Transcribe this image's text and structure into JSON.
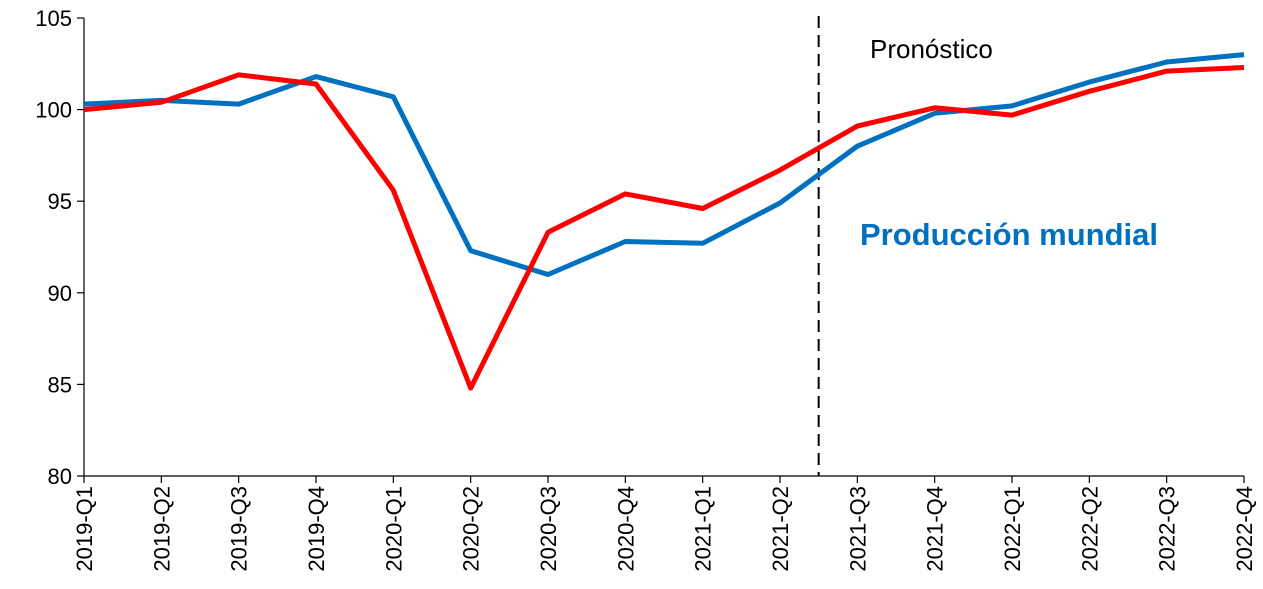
{
  "chart_data": {
    "type": "line",
    "categories": [
      "2019-Q1",
      "2019-Q2",
      "2019-Q3",
      "2019-Q4",
      "2020-Q1",
      "2020-Q2",
      "2020-Q3",
      "2020-Q4",
      "2021-Q1",
      "2021-Q2",
      "2021-Q3",
      "2021-Q4",
      "2022-Q1",
      "2022-Q2",
      "2022-Q3",
      "2022-Q4"
    ],
    "series": [
      {
        "color": "#0070C0",
        "values": [
          100.3,
          100.5,
          100.3,
          101.8,
          100.7,
          92.3,
          91.0,
          92.8,
          92.7,
          94.9,
          98.0,
          99.8,
          100.2,
          101.5,
          102.6,
          103.0
        ]
      },
      {
        "color": "#FF0000",
        "values": [
          100.0,
          100.4,
          101.9,
          101.4,
          95.6,
          84.8,
          93.3,
          95.4,
          94.6,
          96.7,
          99.1,
          100.1,
          99.7,
          101.0,
          102.1,
          102.3
        ]
      }
    ],
    "ylim": [
      80,
      105
    ],
    "yticks": [
      80,
      85,
      90,
      95,
      100,
      105
    ],
    "forecast_start_between": [
      "2021-Q2",
      "2021-Q3"
    ],
    "grid": false,
    "annotations": {
      "forecast_label": "Pronóstico",
      "series_label": "Producción mundial",
      "series_label_color": "#0070C0"
    }
  }
}
